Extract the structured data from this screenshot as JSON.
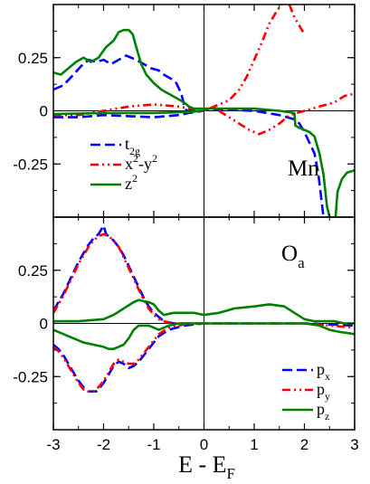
{
  "chart_data": {
    "type": "line",
    "xlabel": "E - E",
    "xlabel_sub": "F",
    "xlim": [
      -3,
      3
    ],
    "x_ticks": [
      "-3",
      "-2",
      "-1",
      "0",
      "1",
      "2",
      "3"
    ],
    "x_tick_values": [
      -3,
      -2,
      -1,
      0,
      1,
      2,
      3
    ],
    "grid": false,
    "panels": [
      {
        "label": "Mn",
        "label_sub": "",
        "legend_position": "bottom-left",
        "ylim": [
          -0.5,
          0.5
        ],
        "y_ticks": [
          "0.25",
          "0",
          "-0.25"
        ],
        "y_tick_values": [
          0.25,
          0,
          -0.25
        ],
        "series": [
          {
            "name": "t",
            "name_sub": "2g",
            "name_sup": "",
            "color": "#0000ff",
            "style": "dashed",
            "x": [
              -3.0,
              -2.8,
              -2.6,
              -2.45,
              -2.3,
              -2.15,
              -2.0,
              -1.85,
              -1.7,
              -1.55,
              -1.45,
              -1.35,
              -1.2,
              -1.05,
              -0.9,
              -0.8,
              -0.65,
              -0.55,
              -0.45,
              -0.4,
              -0.35,
              0.0,
              0.5,
              1.0,
              1.5,
              1.8,
              1.9,
              2.0,
              2.1,
              2.2,
              2.28,
              2.33,
              2.38
            ],
            "y": [
              0.1,
              0.12,
              0.17,
              0.21,
              0.24,
              0.23,
              0.24,
              0.22,
              0.24,
              0.26,
              0.25,
              0.24,
              0.22,
              0.2,
              0.19,
              0.17,
              0.15,
              0.13,
              0.08,
              0.03,
              0.0,
              0.005,
              0.005,
              0.0,
              -0.02,
              -0.04,
              -0.06,
              -0.1,
              -0.15,
              -0.2,
              -0.3,
              -0.4,
              -0.5
            ]
          },
          {
            "name": "t",
            "name_sub": "2g",
            "name_sup": "",
            "color": "#0000ff",
            "style": "dashed",
            "x": [
              -3.0,
              -2.5,
              -2.0,
              -1.5,
              -1.0,
              -0.5,
              -0.3,
              0.0
            ],
            "y": [
              -0.03,
              -0.03,
              -0.02,
              -0.025,
              -0.03,
              -0.02,
              -0.01,
              0.0
            ]
          },
          {
            "name": "x",
            "name_sub": "",
            "name_sup": "2",
            "name_rest": "-y",
            "name_rest_sup": "2",
            "color": "#ff0000",
            "style": "dashdotdot",
            "x": [
              -3.0,
              -2.5,
              -2.0,
              -1.5,
              -1.0,
              -0.5,
              0.0,
              0.5,
              0.7,
              0.85,
              1.0,
              1.15,
              1.3,
              1.45,
              1.55
            ],
            "y": [
              -0.02,
              -0.02,
              0.0,
              0.02,
              0.03,
              0.02,
              0.0,
              0.05,
              0.1,
              0.16,
              0.24,
              0.32,
              0.41,
              0.47,
              0.5
            ]
          },
          {
            "name": "x",
            "name_sub": "",
            "name_sup": "2",
            "name_rest": "-y",
            "name_rest_sup": "2",
            "color": "#ff0000",
            "style": "dashdotdot",
            "x": [
              0.3,
              0.5,
              0.7,
              0.9,
              1.1,
              1.3,
              1.5,
              1.7,
              2.0,
              2.3,
              2.6,
              2.8,
              3.0
            ],
            "y": [
              0.0,
              -0.03,
              -0.06,
              -0.09,
              -0.11,
              -0.09,
              -0.06,
              -0.02,
              0.0,
              0.02,
              0.04,
              0.07,
              0.08
            ]
          },
          {
            "name": "x",
            "name_sub": "",
            "name_sup": "2",
            "name_rest": "-y",
            "name_rest_sup": "2",
            "color": "#ff0000",
            "style": "dashdotdot",
            "x": [
              1.7,
              1.8,
              1.9,
              2.0
            ],
            "y": [
              0.5,
              0.44,
              0.4,
              0.36
            ]
          },
          {
            "name": "z",
            "name_sub": "",
            "name_sup": "2",
            "color": "#008000",
            "style": "solid",
            "x": [
              -3.0,
              -2.85,
              -2.7,
              -2.55,
              -2.4,
              -2.25,
              -2.1,
              -1.95,
              -1.8,
              -1.7,
              -1.6,
              -1.5,
              -1.42,
              -1.35,
              -1.25,
              -1.15,
              -1.0,
              -0.85,
              -0.7,
              -0.55,
              -0.4,
              -0.3,
              -0.2,
              0.0,
              0.5,
              1.0,
              1.5,
              1.8,
              1.82,
              1.9,
              2.0,
              2.1,
              2.2,
              2.3,
              2.38,
              2.45,
              2.5
            ],
            "y": [
              0.18,
              0.17,
              0.2,
              0.23,
              0.25,
              0.23,
              0.25,
              0.3,
              0.33,
              0.37,
              0.38,
              0.38,
              0.36,
              0.3,
              0.22,
              0.17,
              0.13,
              0.1,
              0.08,
              0.06,
              0.04,
              0.02,
              0.01,
              0.01,
              0.01,
              0.01,
              0.0,
              -0.01,
              -0.07,
              -0.08,
              -0.09,
              -0.1,
              -0.12,
              -0.2,
              -0.3,
              -0.45,
              -0.5
            ]
          },
          {
            "name": "z",
            "name_sub": "",
            "name_sup": "2",
            "color": "#008000",
            "style": "solid",
            "x": [
              -3.0,
              -2.0,
              -1.0,
              -0.3,
              0.0
            ],
            "y": [
              -0.015,
              -0.01,
              -0.01,
              -0.005,
              0.0
            ]
          },
          {
            "name": "z",
            "name_sub": "",
            "name_sup": "2",
            "color": "#008000",
            "style": "solid",
            "x": [
              2.62,
              2.66,
              2.75,
              2.85,
              3.0
            ],
            "y": [
              -0.5,
              -0.38,
              -0.32,
              -0.29,
              -0.28
            ]
          }
        ]
      },
      {
        "label": "O",
        "label_sub": "a",
        "legend_position": "bottom-right",
        "ylim": [
          -0.5,
          0.5
        ],
        "y_ticks": [
          "0.25",
          "0",
          "-0.25"
        ],
        "y_tick_values": [
          0.25,
          0,
          -0.25
        ],
        "series": [
          {
            "name": "p",
            "name_sub": "x",
            "name_sup": "",
            "color": "#0000ff",
            "style": "dashed",
            "x": [
              -3.0,
              -2.9,
              -2.8,
              -2.7,
              -2.6,
              -2.5,
              -2.4,
              -2.3,
              -2.2,
              -2.1,
              -2.05,
              -2.0,
              -1.95,
              -1.9,
              -1.8,
              -1.7,
              -1.6,
              -1.5,
              -1.4,
              -1.3,
              -1.2,
              -1.1,
              -1.0,
              -0.9,
              -0.8,
              -0.6,
              -0.3,
              0.0
            ],
            "y": [
              0.06,
              0.1,
              0.14,
              0.19,
              0.24,
              0.29,
              0.33,
              0.37,
              0.4,
              0.42,
              0.44,
              0.46,
              0.42,
              0.41,
              0.39,
              0.36,
              0.32,
              0.27,
              0.22,
              0.17,
              0.12,
              0.08,
              0.05,
              0.03,
              0.01,
              0.0,
              0.0,
              0.0
            ]
          },
          {
            "name": "p",
            "name_sub": "x",
            "name_sup": "",
            "color": "#0000ff",
            "style": "dashed",
            "x": [
              -3.0,
              -2.9,
              -2.8,
              -2.7,
              -2.6,
              -2.5,
              -2.4,
              -2.3,
              -2.2,
              -2.15,
              -2.1,
              -2.0,
              -1.9,
              -1.8,
              -1.7,
              -1.6,
              -1.5,
              -1.4,
              -1.3,
              -1.2,
              -1.1,
              -1.0,
              -0.9,
              -0.7,
              -0.4,
              0.0,
              0.5,
              1.0,
              1.5,
              2.0,
              2.5,
              3.0
            ],
            "y": [
              -0.1,
              -0.12,
              -0.15,
              -0.19,
              -0.23,
              -0.27,
              -0.3,
              -0.32,
              -0.32,
              -0.32,
              -0.31,
              -0.28,
              -0.24,
              -0.2,
              -0.18,
              -0.19,
              -0.21,
              -0.2,
              -0.18,
              -0.15,
              -0.12,
              -0.09,
              -0.06,
              -0.03,
              -0.01,
              0.0,
              0.0,
              0.0,
              0.0,
              0.0,
              -0.005,
              -0.01
            ]
          },
          {
            "name": "p",
            "name_sub": "y",
            "name_sup": "",
            "color": "#ff0000",
            "style": "dashdotdot",
            "x": [
              -3.0,
              -2.9,
              -2.8,
              -2.7,
              -2.6,
              -2.5,
              -2.4,
              -2.3,
              -2.2,
              -2.1,
              -2.0,
              -1.9,
              -1.8,
              -1.7,
              -1.6,
              -1.5,
              -1.4,
              -1.3,
              -1.2,
              -1.1,
              -1.0,
              -0.9,
              -0.8,
              -0.6,
              -0.3,
              0.0
            ],
            "y": [
              0.05,
              0.09,
              0.13,
              0.18,
              0.23,
              0.28,
              0.32,
              0.36,
              0.39,
              0.41,
              0.42,
              0.41,
              0.39,
              0.36,
              0.31,
              0.26,
              0.21,
              0.16,
              0.11,
              0.07,
              0.04,
              0.02,
              0.01,
              0.0,
              0.0,
              0.0
            ]
          },
          {
            "name": "p",
            "name_sub": "y",
            "name_sup": "",
            "color": "#ff0000",
            "style": "dashdotdot",
            "x": [
              -3.0,
              -2.9,
              -2.8,
              -2.7,
              -2.6,
              -2.5,
              -2.4,
              -2.3,
              -2.2,
              -2.1,
              -2.0,
              -1.9,
              -1.8,
              -1.7,
              -1.6,
              -1.5,
              -1.4,
              -1.3,
              -1.2,
              -1.1,
              -1.0,
              -0.9,
              -0.7,
              -0.4,
              0.0,
              0.5,
              1.0,
              1.5,
              2.0,
              2.5,
              3.0
            ],
            "y": [
              -0.11,
              -0.13,
              -0.16,
              -0.2,
              -0.24,
              -0.28,
              -0.31,
              -0.32,
              -0.32,
              -0.3,
              -0.27,
              -0.23,
              -0.19,
              -0.17,
              -0.18,
              -0.19,
              -0.19,
              -0.17,
              -0.14,
              -0.11,
              -0.08,
              -0.05,
              -0.02,
              -0.005,
              0.0,
              0.0,
              0.0,
              0.0,
              0.0,
              -0.01,
              -0.02
            ]
          },
          {
            "name": "p",
            "name_sub": "z",
            "name_sup": "",
            "color": "#008000",
            "style": "solid",
            "x": [
              -3.0,
              -2.5,
              -2.0,
              -1.8,
              -1.6,
              -1.4,
              -1.3,
              -1.1,
              -1.0,
              -0.9,
              -0.8,
              -0.6,
              -0.4,
              -0.2,
              0.0,
              0.3,
              0.6,
              1.0,
              1.3,
              1.6,
              1.8,
              2.0,
              2.2,
              2.4,
              2.6,
              2.8,
              3.0
            ],
            "y": [
              0.01,
              0.01,
              0.02,
              0.04,
              0.07,
              0.1,
              0.11,
              0.1,
              0.09,
              0.06,
              0.04,
              0.05,
              0.05,
              0.05,
              0.04,
              0.05,
              0.07,
              0.08,
              0.09,
              0.08,
              0.05,
              0.02,
              0.01,
              0.01,
              0.01,
              0.0,
              0.0
            ]
          },
          {
            "name": "p",
            "name_sub": "z",
            "name_sup": "",
            "color": "#008000",
            "style": "solid",
            "x": [
              -3.0,
              -2.8,
              -2.6,
              -2.4,
              -2.2,
              -2.0,
              -1.9,
              -1.8,
              -1.7,
              -1.6,
              -1.5,
              -1.4,
              -1.3,
              -1.2,
              -1.1,
              -1.0,
              -0.9,
              -0.7,
              -0.5,
              -0.3,
              0.0,
              0.5,
              1.0,
              1.5,
              2.0,
              2.3,
              2.5,
              2.7,
              3.0
            ],
            "y": [
              -0.03,
              -0.05,
              -0.07,
              -0.09,
              -0.1,
              -0.11,
              -0.12,
              -0.12,
              -0.11,
              -0.1,
              -0.07,
              -0.03,
              -0.01,
              -0.01,
              -0.01,
              -0.02,
              -0.03,
              -0.01,
              0.0,
              0.0,
              0.0,
              0.0,
              0.0,
              0.0,
              0.0,
              -0.01,
              -0.03,
              -0.04,
              -0.05
            ]
          }
        ]
      }
    ]
  }
}
